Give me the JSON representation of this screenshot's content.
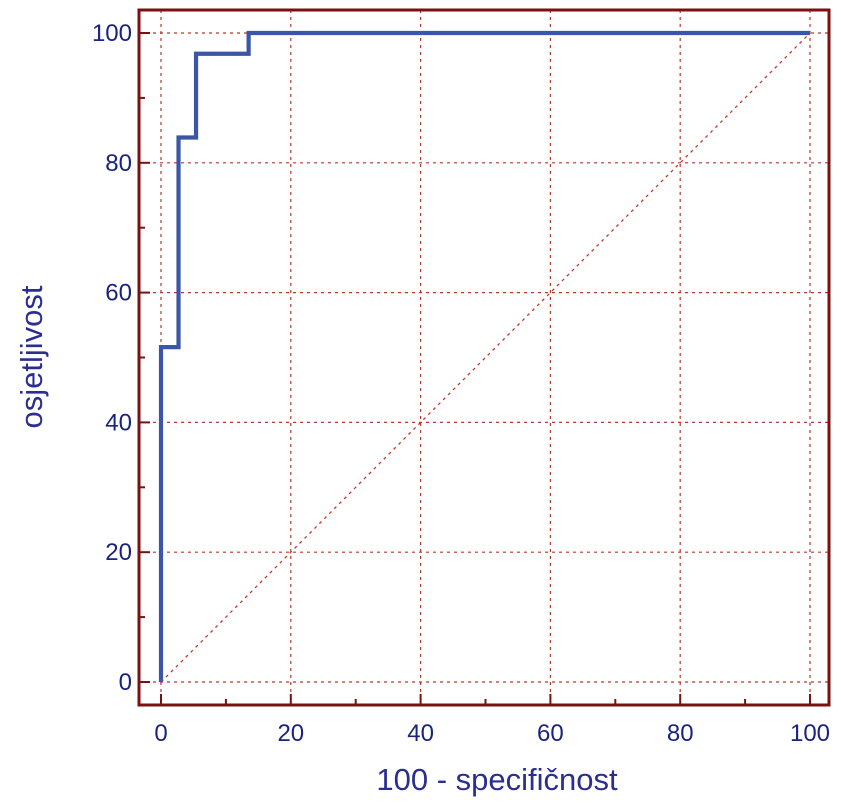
{
  "chart_data": {
    "type": "line",
    "title": "",
    "xlabel": "100 - specifičnost",
    "ylabel": "osjetljivost",
    "xlim": [
      0,
      100
    ],
    "ylim": [
      0,
      100
    ],
    "x_ticks": [
      0,
      20,
      40,
      60,
      80,
      100
    ],
    "y_ticks": [
      0,
      20,
      40,
      60,
      80,
      100
    ],
    "grid": true,
    "legend": "none",
    "series": [
      {
        "style": "step",
        "color": "#3b56a8",
        "points": [
          [
            0,
            0
          ],
          [
            0,
            51.6
          ],
          [
            2.7,
            51.6
          ],
          [
            2.7,
            83.9
          ],
          [
            5.4,
            83.9
          ],
          [
            5.4,
            96.8
          ],
          [
            13.5,
            96.8
          ],
          [
            13.5,
            100
          ],
          [
            100,
            100
          ]
        ]
      },
      {
        "style": "dotted",
        "color": "#c0392b",
        "points": [
          [
            0,
            0
          ],
          [
            100,
            100
          ]
        ]
      }
    ],
    "colors": {
      "frame": "#7a1010",
      "grid": "#b23a2a",
      "tick_label": "#1a237e",
      "axis_title": "#2a2f8f",
      "roc_curve": "#3b56a8",
      "diagonal": "#c0392b"
    }
  }
}
